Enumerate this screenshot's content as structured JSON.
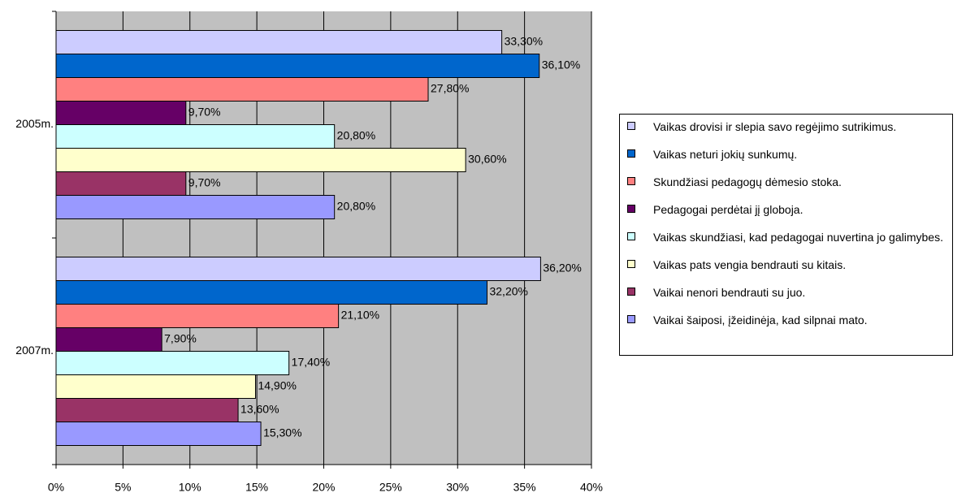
{
  "chart_data": {
    "type": "bar",
    "orientation": "horizontal",
    "categories": [
      "2005m.",
      "2007m."
    ],
    "series": [
      {
        "name": "Vaikas drovisi ir slepia savo regėjimo sutrikimus.",
        "color": "#ccccff",
        "values": [
          33.3,
          36.2
        ],
        "value_labels": [
          "33,30%",
          "36,20%"
        ]
      },
      {
        "name": "Vaikas neturi jokių sunkumų.",
        "color": "#0066cc",
        "values": [
          36.1,
          32.2
        ],
        "value_labels": [
          "36,10%",
          "32,20%"
        ]
      },
      {
        "name": "Skundžiasi pedagogų dėmesio stoka.",
        "color": "#ff8080",
        "values": [
          27.8,
          21.1
        ],
        "value_labels": [
          "27,80%",
          "21,10%"
        ]
      },
      {
        "name": "Pedagogai perdėtai jį globoja.",
        "color": "#660066",
        "values": [
          9.7,
          7.9
        ],
        "value_labels": [
          "9,70%",
          "7,90%"
        ]
      },
      {
        "name": "Vaikas skundžiasi, kad pedagogai nuvertina jo galimybes.",
        "color": "#ccffff",
        "values": [
          20.8,
          17.4
        ],
        "value_labels": [
          "20,80%",
          "17,40%"
        ]
      },
      {
        "name": "Vaikas pats vengia bendrauti su kitais.",
        "color": "#ffffcc",
        "values": [
          30.6,
          14.9
        ],
        "value_labels": [
          "30,60%",
          "14,90%"
        ]
      },
      {
        "name": "Vaikai nenori bendrauti su juo.",
        "color": "#993366",
        "values": [
          9.7,
          13.6
        ],
        "value_labels": [
          "9,70%",
          "13,60%"
        ]
      },
      {
        "name": "Vaikai šaiposi, įžeidinėja, kad silpnai mato.",
        "color": "#9999ff",
        "values": [
          20.8,
          15.3
        ],
        "value_labels": [
          "20,80%",
          "15,30%"
        ]
      }
    ],
    "xlim": [
      0,
      40
    ],
    "xticks": [
      {
        "value": 0,
        "label": "0%"
      },
      {
        "value": 5,
        "label": "5%"
      },
      {
        "value": 10,
        "label": "10%"
      },
      {
        "value": 15,
        "label": "15%"
      },
      {
        "value": 20,
        "label": "20%"
      },
      {
        "value": 25,
        "label": "25%"
      },
      {
        "value": 30,
        "label": "30%"
      },
      {
        "value": 35,
        "label": "35%"
      },
      {
        "value": 40,
        "label": "40%"
      }
    ],
    "grid": true,
    "legend": "right"
  }
}
